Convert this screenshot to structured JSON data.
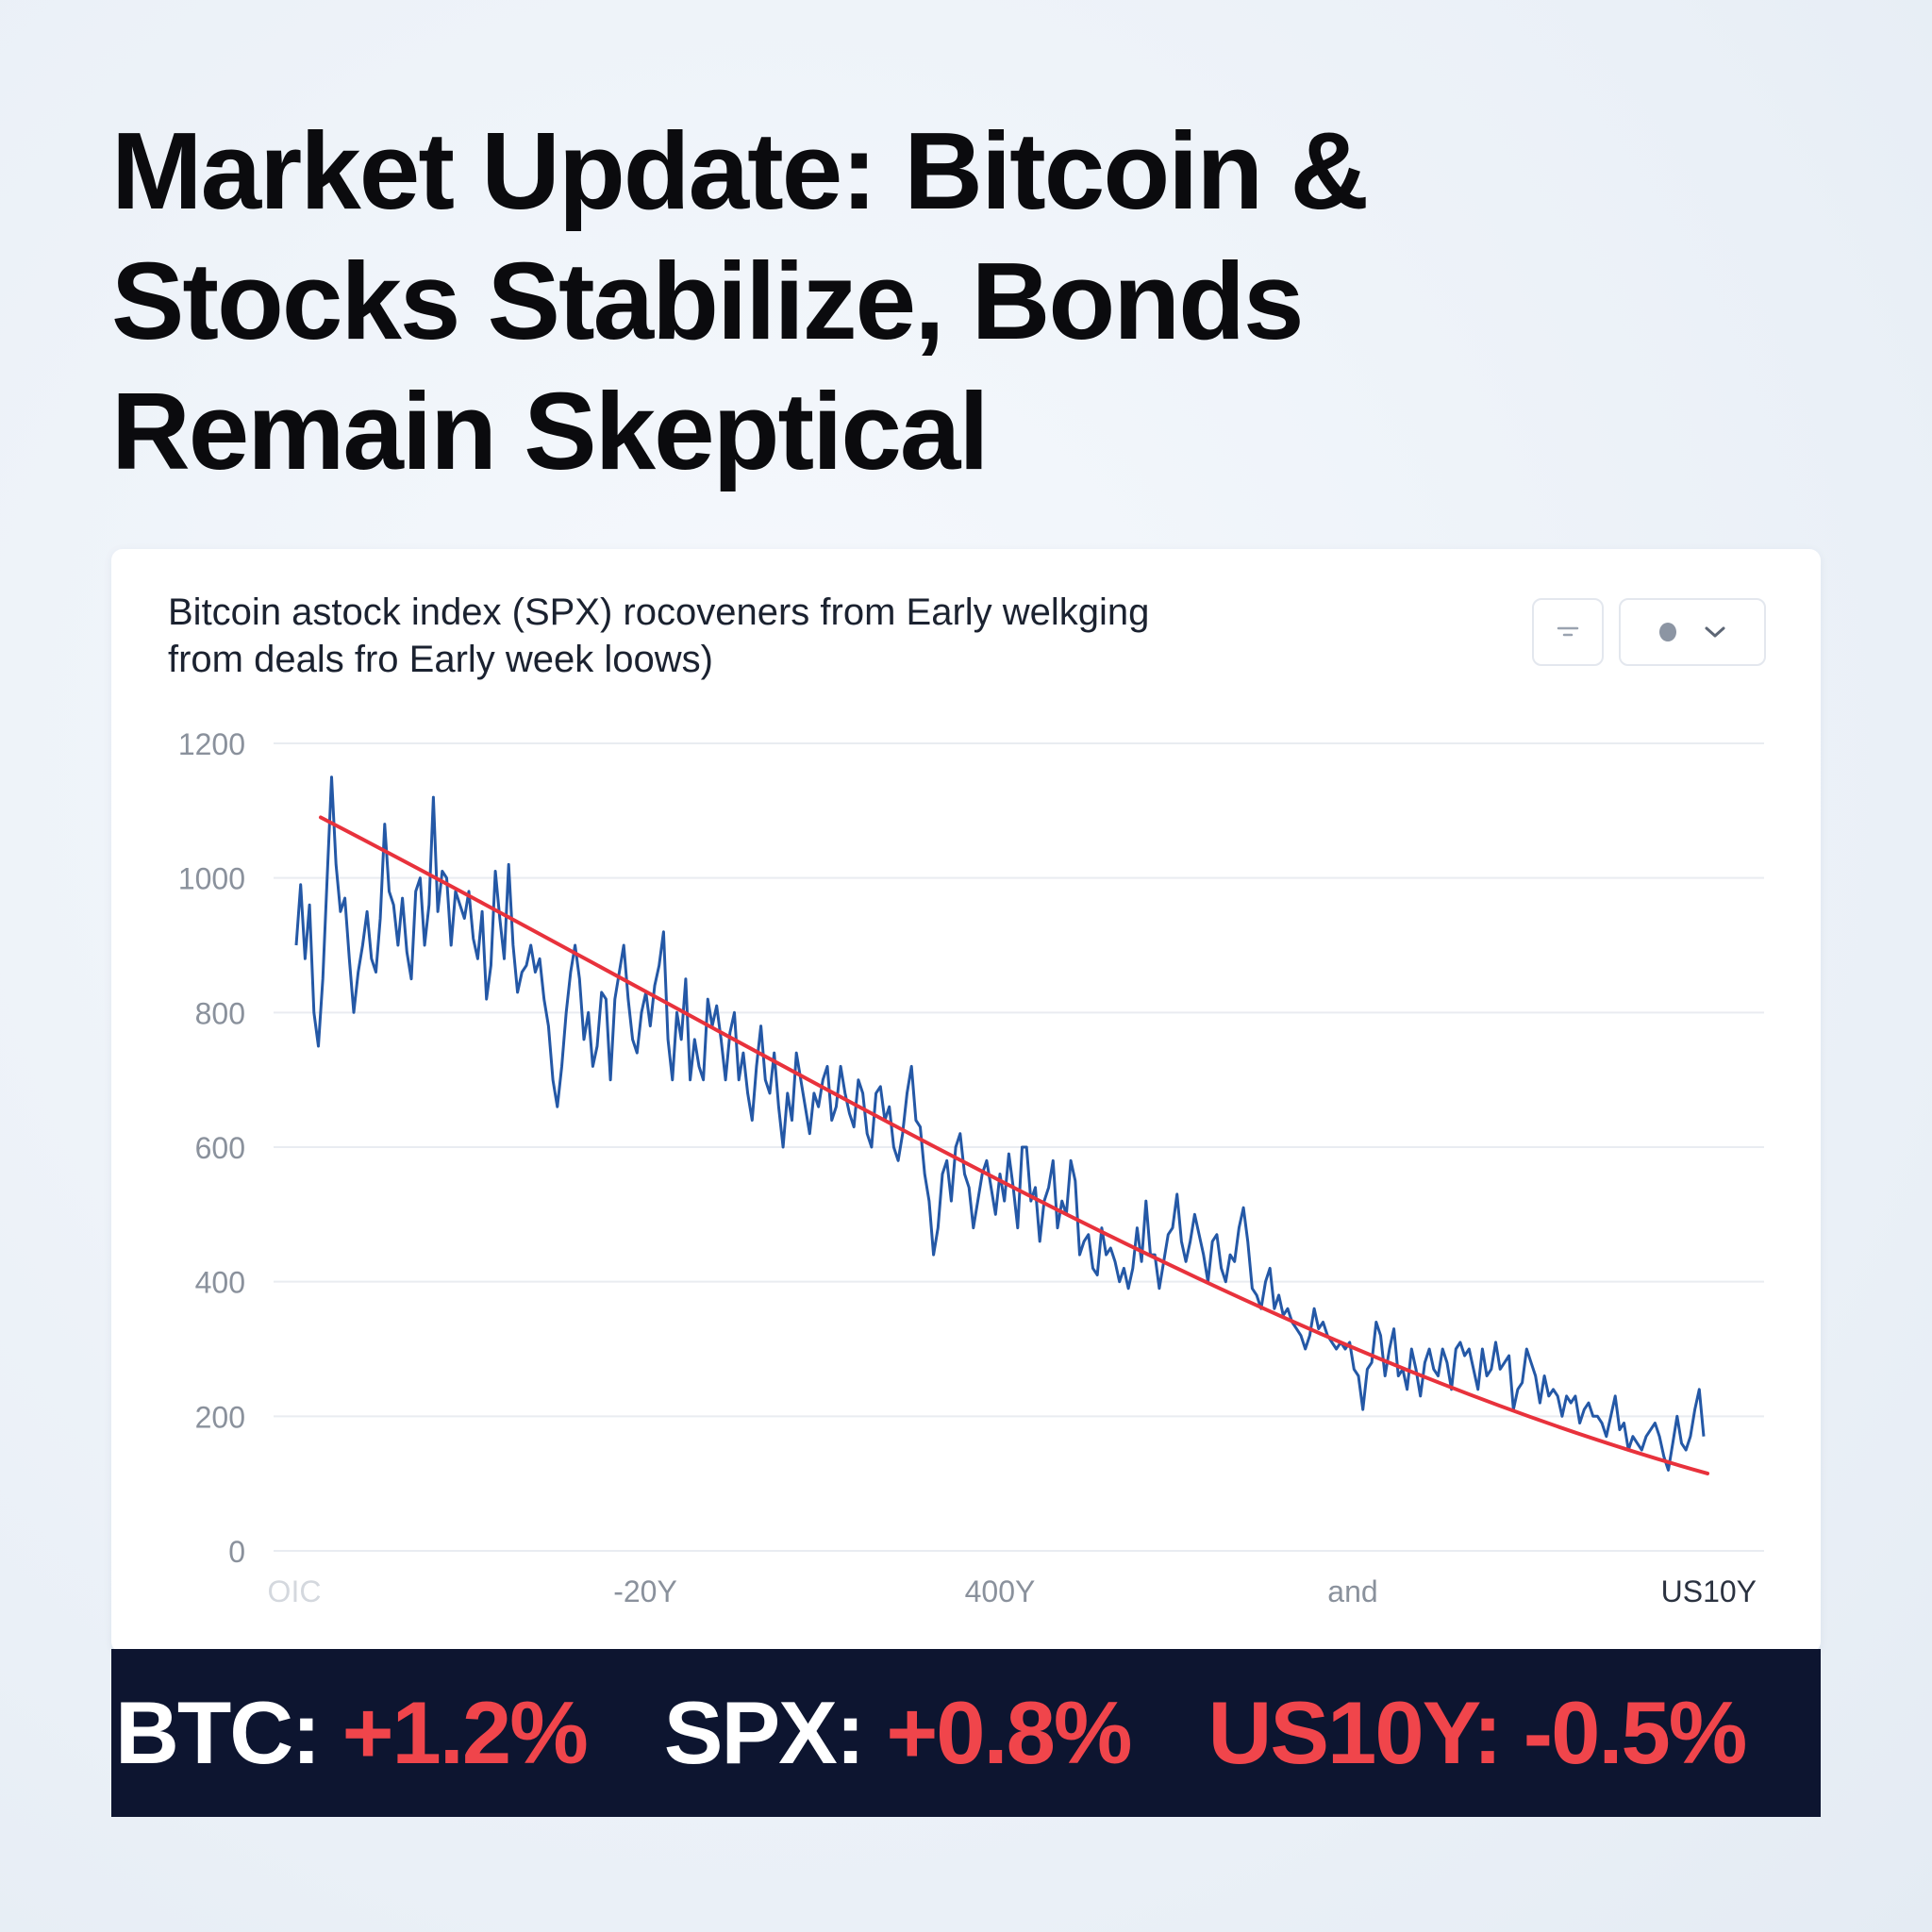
{
  "headline": {
    "lines": [
      "Market Update: Bitcoin &",
      "Stocks Stabilize, Bonds",
      "Remain Skeptical"
    ]
  },
  "chart_card": {
    "subtitle_lines": [
      "Bitcoin astock index (SPX) rocoveners from  Early welkging",
      "from deals fro Early week loows)"
    ],
    "controls": {
      "filter_icon": "filter-icon",
      "view_icon": "circle-icon",
      "dropdown_icon": "chevron-down-icon"
    }
  },
  "chart_data": {
    "type": "line",
    "title": "",
    "xlabel": "",
    "ylabel": "",
    "ylim": [
      0,
      1200
    ],
    "yticks": [
      0,
      200,
      400,
      600,
      800,
      1000,
      1200
    ],
    "xticks": [
      "OIC",
      "-20Y",
      "400Y",
      "and",
      "US10Y"
    ],
    "grid": true,
    "colors": {
      "series": "#2458a6",
      "trend": "#e8323c"
    },
    "series": [
      {
        "values": [
          900,
          990,
          880,
          960,
          800,
          750,
          850,
          1000,
          1150,
          1020,
          950,
          970,
          880,
          800,
          860,
          900,
          950,
          880,
          860,
          940,
          1080,
          980,
          960,
          900,
          970,
          890,
          850,
          980,
          1000,
          900,
          960,
          1120,
          950,
          1010,
          1000,
          900,
          980,
          960,
          940,
          980,
          910,
          880,
          950,
          820,
          870,
          1010,
          940,
          880,
          1020,
          900,
          830,
          860,
          870,
          900,
          860,
          880,
          820,
          780,
          700,
          660,
          720,
          800,
          860,
          900,
          850,
          760,
          800,
          720,
          750,
          830,
          820,
          700,
          820,
          860,
          900,
          820,
          760,
          740,
          800,
          830,
          780,
          840,
          870,
          920,
          760,
          700,
          800,
          760,
          850,
          700,
          760,
          720,
          700,
          820,
          780,
          810,
          760,
          700,
          770,
          800,
          700,
          740,
          680,
          640,
          720,
          780,
          700,
          680,
          740,
          660,
          600,
          680,
          640,
          740,
          700,
          660,
          620,
          680,
          660,
          700,
          720,
          640,
          660,
          720,
          680,
          650,
          630,
          700,
          680,
          620,
          600,
          680,
          690,
          640,
          660,
          600,
          580,
          620,
          680,
          720,
          640,
          630,
          560,
          520,
          440,
          480,
          560,
          580,
          520,
          600,
          620,
          560,
          540,
          480,
          520,
          560,
          580,
          540,
          500,
          560,
          520,
          590,
          540,
          480,
          600,
          600,
          520,
          540,
          460,
          520,
          540,
          580,
          480,
          520,
          500,
          580,
          550,
          440,
          460,
          470,
          420,
          410,
          480,
          440,
          450,
          430,
          400,
          420,
          390,
          420,
          480,
          430,
          520,
          440,
          440,
          390,
          430,
          470,
          480,
          530,
          460,
          430,
          460,
          500,
          470,
          440,
          400,
          460,
          470,
          420,
          400,
          440,
          430,
          480,
          510,
          460,
          390,
          380,
          360,
          400,
          420,
          360,
          380,
          350,
          360,
          340,
          330,
          320,
          300,
          320,
          360,
          330,
          340,
          320,
          310,
          300,
          310,
          300,
          310,
          270,
          260,
          210,
          270,
          280,
          340,
          320,
          260,
          300,
          330,
          260,
          270,
          240,
          300,
          270,
          230,
          280,
          300,
          270,
          260,
          300,
          280,
          240,
          300,
          310,
          290,
          300,
          270,
          240,
          300,
          260,
          270,
          310,
          270,
          280,
          290,
          210,
          240,
          250,
          300,
          280,
          260,
          220,
          260,
          230,
          240,
          230,
          200,
          230,
          220,
          230,
          190,
          210,
          220,
          200,
          200,
          190,
          170,
          200,
          230,
          180,
          190,
          150,
          170,
          160,
          150,
          170,
          180,
          190,
          170,
          140,
          120,
          160,
          200,
          160,
          150,
          170,
          210,
          240,
          170
        ]
      },
      {
        "values": [
          1090,
          115
        ]
      }
    ]
  },
  "ticker": [
    {
      "symbol": "BTC:",
      "change": "+1.2%"
    },
    {
      "symbol": "SPX:",
      "change": "+0.8%"
    },
    {
      "symbol": "US10Y:",
      "change": "-0.5%"
    }
  ]
}
